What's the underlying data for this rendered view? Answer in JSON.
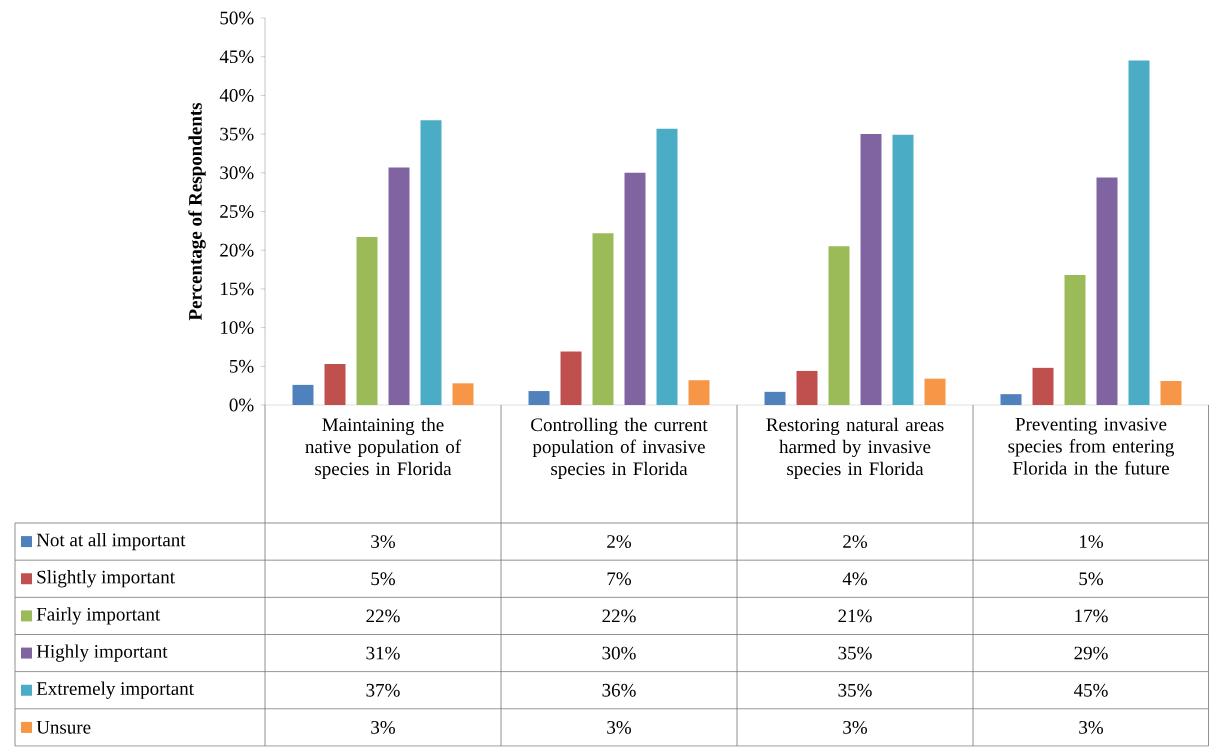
{
  "chart_data": {
    "type": "bar",
    "ylabel": "Percentage of Respondents",
    "categories": [
      "Maintaining the native population of species in Florida",
      "Controlling the current population of invasive species in Florida",
      "Restoring natural areas harmed by invasive species in Florida",
      "Preventing invasive species from entering Florida in the future"
    ],
    "series": [
      {
        "name": "Not at all important",
        "color": "#4f81bd",
        "values": [
          2.6,
          1.8,
          1.7,
          1.4
        ],
        "value_labels": [
          "3%",
          "2%",
          "2%",
          "1%"
        ]
      },
      {
        "name": "Slightly important",
        "color": "#c0504d",
        "values": [
          5.3,
          6.9,
          4.4,
          4.8
        ],
        "value_labels": [
          "5%",
          "7%",
          "4%",
          "5%"
        ]
      },
      {
        "name": "Fairly important",
        "color": "#9bbb59",
        "values": [
          21.7,
          22.2,
          20.5,
          16.8
        ],
        "value_labels": [
          "22%",
          "22%",
          "21%",
          "17%"
        ]
      },
      {
        "name": "Highly important",
        "color": "#8064a2",
        "values": [
          30.7,
          30.0,
          35.0,
          29.4
        ],
        "value_labels": [
          "31%",
          "30%",
          "35%",
          "29%"
        ]
      },
      {
        "name": "Extremely important",
        "color": "#4bacc6",
        "values": [
          36.8,
          35.7,
          34.9,
          44.5
        ],
        "value_labels": [
          "37%",
          "36%",
          "35%",
          "45%"
        ]
      },
      {
        "name": "Unsure",
        "color": "#f79646",
        "values": [
          2.8,
          3.2,
          3.4,
          3.1
        ],
        "value_labels": [
          "3%",
          "3%",
          "3%",
          "3%"
        ]
      }
    ],
    "ylim": [
      0,
      50
    ],
    "yticks": [
      {
        "value": 0,
        "label": "0%"
      },
      {
        "value": 5,
        "label": "5%"
      },
      {
        "value": 10,
        "label": "10%"
      },
      {
        "value": 15,
        "label": "15%"
      },
      {
        "value": 20,
        "label": "20%"
      },
      {
        "value": 25,
        "label": "25%"
      },
      {
        "value": 30,
        "label": "30%"
      },
      {
        "value": 35,
        "label": "35%"
      },
      {
        "value": 40,
        "label": "40%"
      },
      {
        "value": 45,
        "label": "45%"
      },
      {
        "value": 50,
        "label": "50%"
      }
    ],
    "grid": false,
    "legend": "left"
  }
}
